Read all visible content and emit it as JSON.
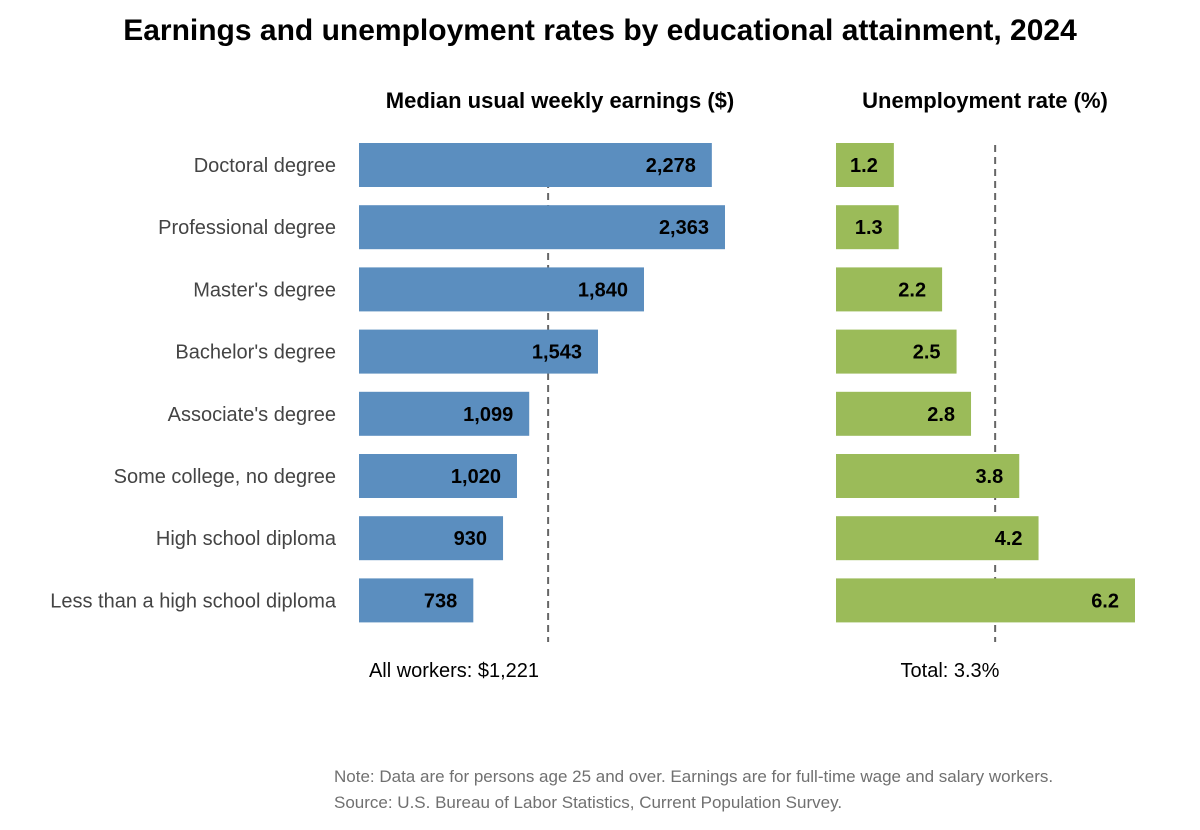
{
  "title": "Earnings and unemployment rates by educational attainment, 2024",
  "colors": {
    "earnings_bar": "#5b8ebf",
    "unemployment_bar": "#9bbb59",
    "reference_line": "#666666"
  },
  "chart_data": [
    {
      "type": "bar",
      "orientation": "horizontal",
      "title": "Median usual weekly earnings ($)",
      "categories": [
        "Doctoral degree",
        "Professional degree",
        "Master's degree",
        "Bachelor's degree",
        "Associate's degree",
        "Some college, no degree",
        "High school diploma",
        "Less than a high school diploma"
      ],
      "values": [
        2278,
        2363,
        1840,
        1543,
        1099,
        1020,
        930,
        738
      ],
      "value_labels": [
        "2,278",
        "2,363",
        "1,840",
        "1,543",
        "1,099",
        "1,020",
        "930",
        "738"
      ],
      "reference": {
        "value": 1221,
        "label": "All workers: $1,221"
      },
      "xlim": [
        0,
        2363
      ]
    },
    {
      "type": "bar",
      "orientation": "horizontal",
      "title": "Unemployment rate (%)",
      "categories": [
        "Doctoral degree",
        "Professional degree",
        "Master's degree",
        "Bachelor's degree",
        "Associate's degree",
        "Some college, no degree",
        "High school diploma",
        "Less than a high school diploma"
      ],
      "values": [
        1.2,
        1.3,
        2.2,
        2.5,
        2.8,
        3.8,
        4.2,
        6.2
      ],
      "value_labels": [
        "1.2",
        "1.3",
        "2.2",
        "2.5",
        "2.8",
        "3.8",
        "4.2",
        "6.2"
      ],
      "reference": {
        "value": 3.3,
        "label": "Total: 3.3%"
      },
      "xlim": [
        0,
        6.2
      ]
    }
  ],
  "note": {
    "line1": "Note: Data are for persons age 25 and over. Earnings are for full-time wage and salary workers.",
    "line2": "Source: U.S. Bureau of Labor Statistics, Current Population Survey."
  }
}
